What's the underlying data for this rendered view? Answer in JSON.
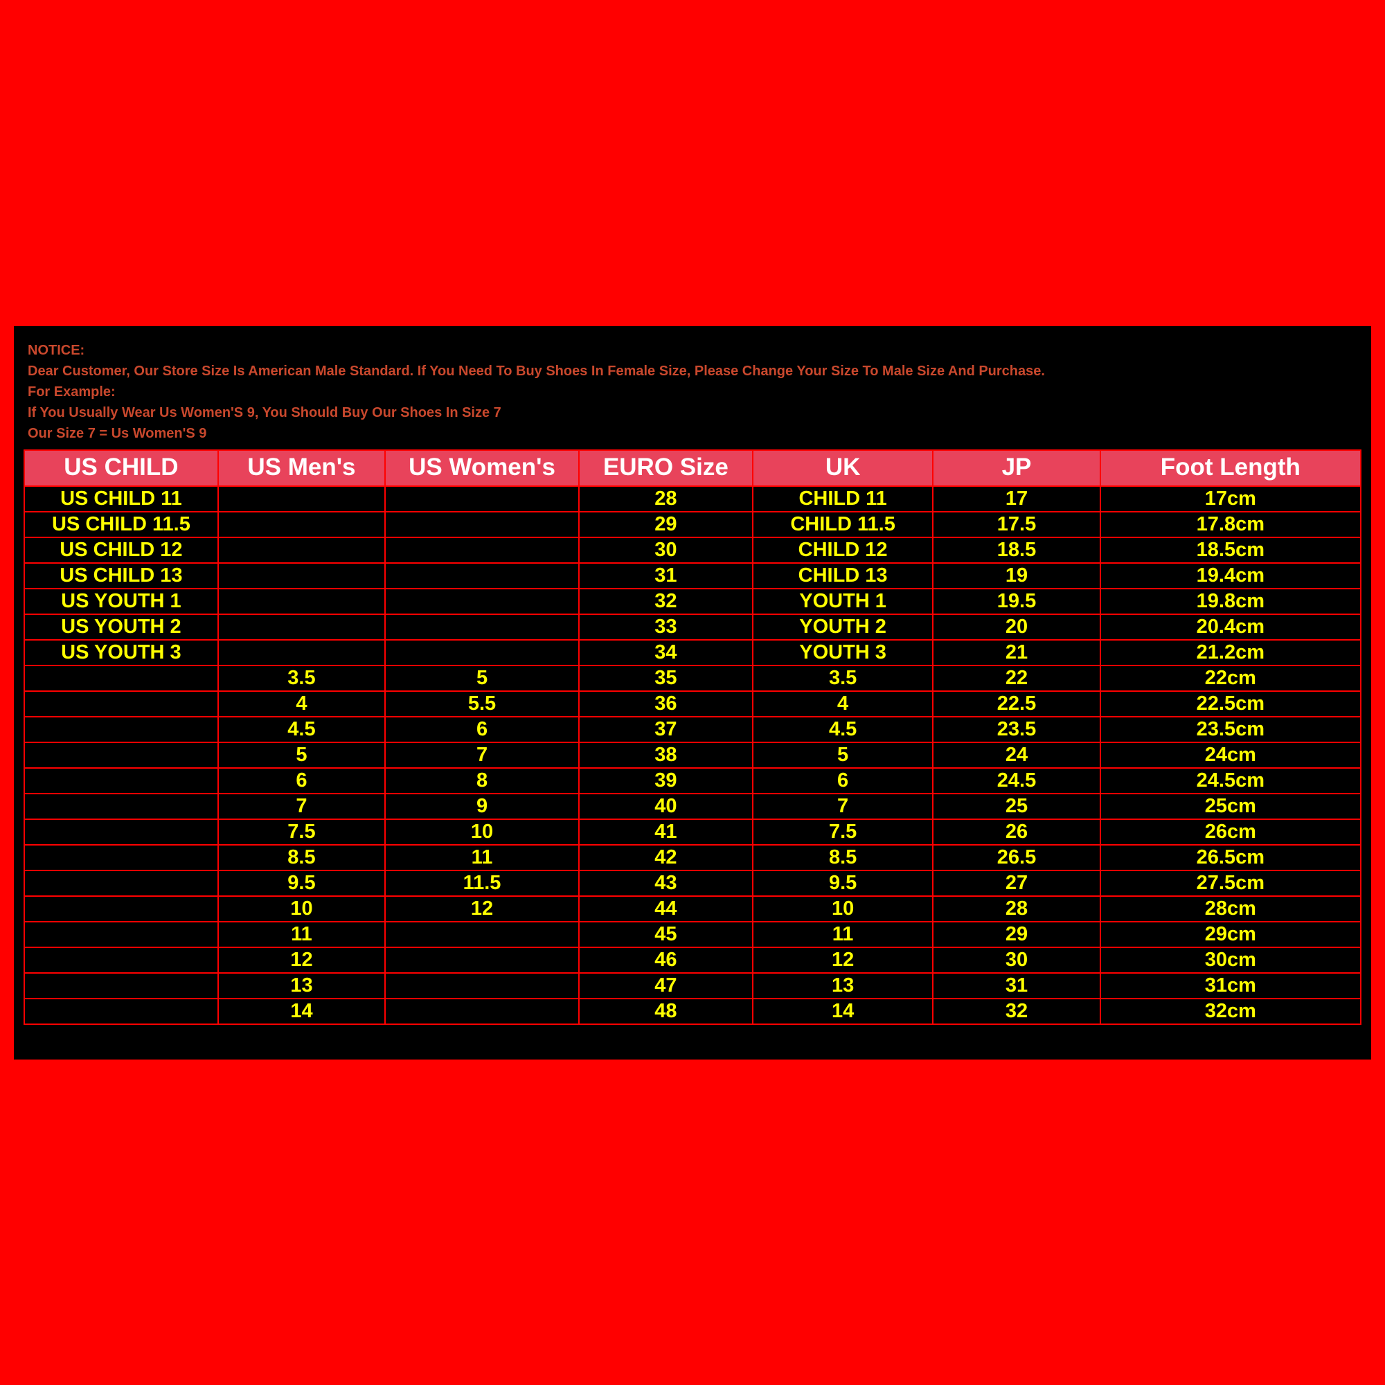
{
  "notice": {
    "line1": "NOTICE:",
    "line2": "Dear Customer, Our Store Size Is American Male Standard. If You Need To Buy Shoes In Female Size, Please Change Your Size To Male Size And Purchase.",
    "line3": "For Example:",
    "line4": "If You Usually Wear Us Women'S 9, You Should Buy Our Shoes In Size 7",
    "line5": "Our Size 7 = Us Women'S 9"
  },
  "table": {
    "columns": [
      "US CHILD",
      "US Men's",
      "US Women's",
      "EURO Size",
      "UK",
      "JP",
      "Foot Length"
    ],
    "column_widths_pct": [
      14.5,
      12.5,
      14.5,
      13,
      13.5,
      12.5,
      19.5
    ],
    "rows": [
      [
        "US CHILD 11",
        "",
        "",
        "28",
        "CHILD 11",
        "17",
        "17cm"
      ],
      [
        "US CHILD 11.5",
        "",
        "",
        "29",
        "CHILD 11.5",
        "17.5",
        "17.8cm"
      ],
      [
        "US CHILD 12",
        "",
        "",
        "30",
        "CHILD 12",
        "18.5",
        "18.5cm"
      ],
      [
        "US CHILD 13",
        "",
        "",
        "31",
        "CHILD 13",
        "19",
        "19.4cm"
      ],
      [
        "US YOUTH 1",
        "",
        "",
        "32",
        "YOUTH 1",
        "19.5",
        "19.8cm"
      ],
      [
        "US YOUTH 2",
        "",
        "",
        "33",
        "YOUTH 2",
        "20",
        "20.4cm"
      ],
      [
        "US YOUTH 3",
        "",
        "",
        "34",
        "YOUTH 3",
        "21",
        "21.2cm"
      ],
      [
        "",
        "3.5",
        "5",
        "35",
        "3.5",
        "22",
        "22cm"
      ],
      [
        "",
        "4",
        "5.5",
        "36",
        "4",
        "22.5",
        "22.5cm"
      ],
      [
        "",
        "4.5",
        "6",
        "37",
        "4.5",
        "23.5",
        "23.5cm"
      ],
      [
        "",
        "5",
        "7",
        "38",
        "5",
        "24",
        "24cm"
      ],
      [
        "",
        "6",
        "8",
        "39",
        "6",
        "24.5",
        "24.5cm"
      ],
      [
        "",
        "7",
        "9",
        "40",
        "7",
        "25",
        "25cm"
      ],
      [
        "",
        "7.5",
        "10",
        "41",
        "7.5",
        "26",
        "26cm"
      ],
      [
        "",
        "8.5",
        "11",
        "42",
        "8.5",
        "26.5",
        "26.5cm"
      ],
      [
        "",
        "9.5",
        "11.5",
        "43",
        "9.5",
        "27",
        "27.5cm"
      ],
      [
        "",
        "10",
        "12",
        "44",
        "10",
        "28",
        "28cm"
      ],
      [
        "",
        "11",
        "",
        "45",
        "11",
        "29",
        "29cm"
      ],
      [
        "",
        "12",
        "",
        "46",
        "12",
        "30",
        "30cm"
      ],
      [
        "",
        "13",
        "",
        "47",
        "13",
        "31",
        "31cm"
      ],
      [
        "",
        "14",
        "",
        "48",
        "14",
        "32",
        "32cm"
      ]
    ]
  },
  "style": {
    "page_bg": "#ff0000",
    "panel_bg": "#000000",
    "notice_color": "#c9482d",
    "header_bg": "#e8435b",
    "header_color": "#ffffff",
    "cell_color": "#ffff00",
    "border_color": "#ff0000",
    "header_fontsize": 35,
    "cell_fontsize": 29,
    "notice_fontsize": 20
  }
}
